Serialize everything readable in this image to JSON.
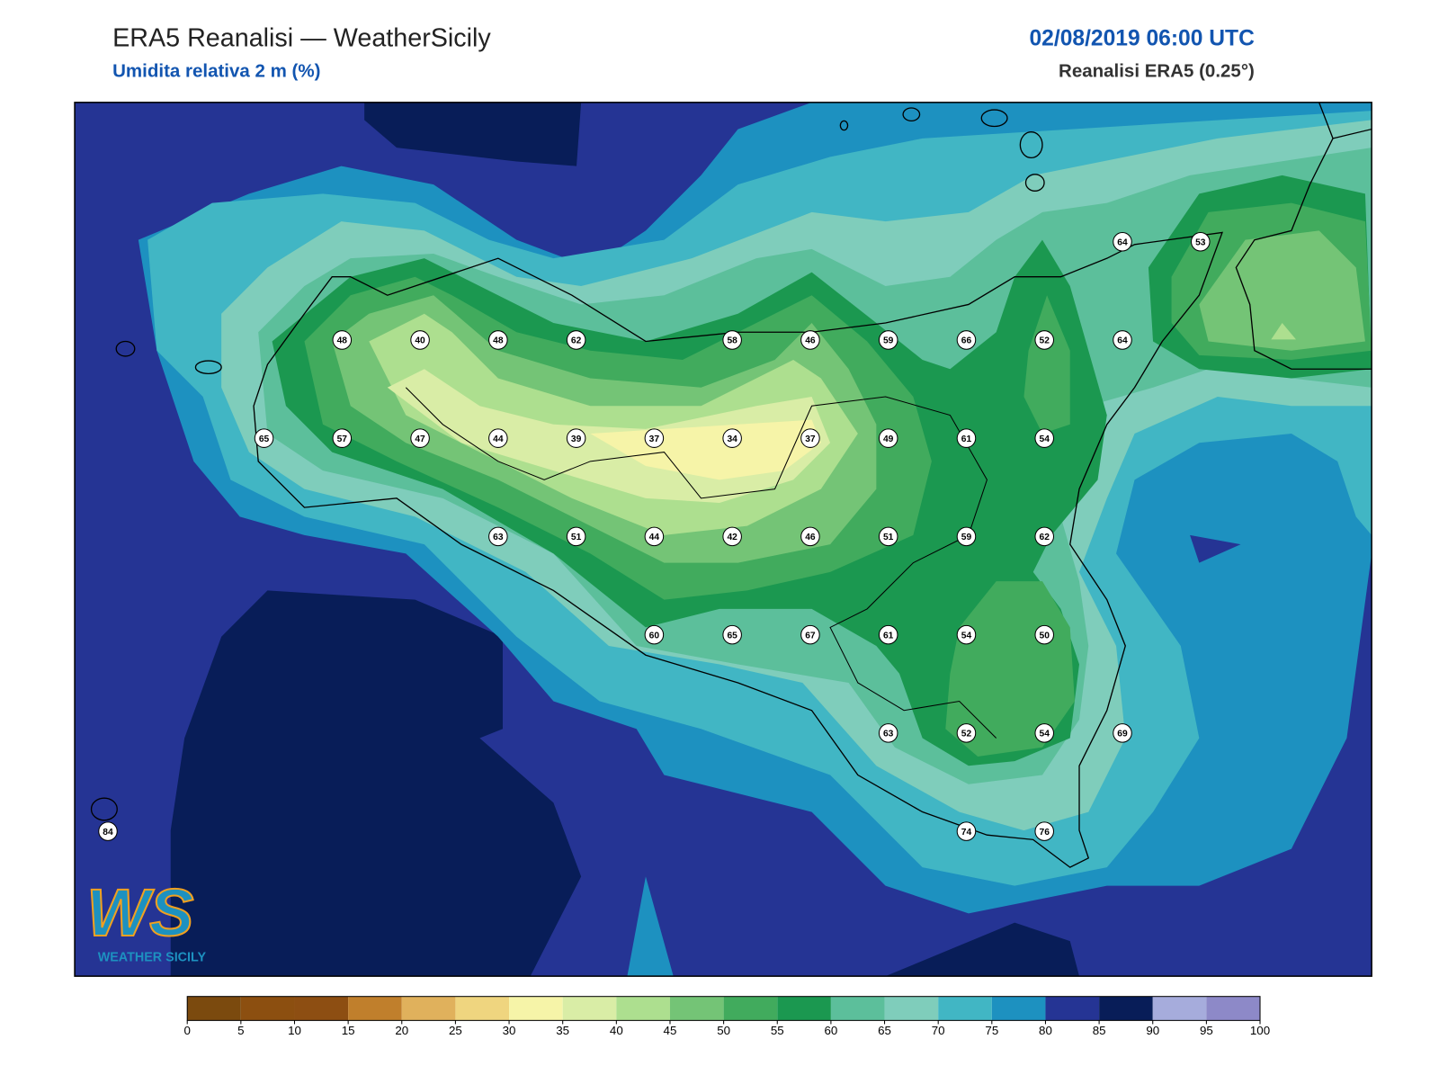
{
  "header": {
    "title": "ERA5 Reanalisi — WeatherSicily",
    "subtitle": "Umidita relativa 2 m (%)",
    "datetime": "02/08/2019 06:00 UTC",
    "source": "Reanalisi ERA5 (0.25°)"
  },
  "map": {
    "station_grid": [
      [
        null,
        null,
        null,
        null,
        null,
        null,
        null,
        null,
        null,
        null,
        null,
        null,
        null,
        64,
        53
      ],
      [
        null,
        null,
        null,
        48,
        40,
        48,
        62,
        null,
        58,
        46,
        59,
        66,
        52,
        64,
        null
      ],
      [
        null,
        null,
        65,
        57,
        47,
        44,
        39,
        37,
        34,
        37,
        49,
        61,
        54,
        null,
        null
      ],
      [
        null,
        null,
        null,
        null,
        null,
        63,
        51,
        44,
        42,
        46,
        51,
        59,
        62,
        null,
        null
      ],
      [
        null,
        null,
        null,
        null,
        null,
        null,
        null,
        60,
        65,
        67,
        61,
        54,
        50,
        null,
        null
      ],
      [
        null,
        null,
        null,
        null,
        null,
        null,
        null,
        null,
        null,
        null,
        63,
        52,
        54,
        69,
        null
      ],
      [
        84,
        null,
        null,
        null,
        null,
        null,
        null,
        null,
        null,
        null,
        null,
        74,
        76,
        null,
        null
      ]
    ]
  },
  "colorbar": {
    "ticks": [
      0,
      5,
      10,
      15,
      20,
      25,
      30,
      35,
      40,
      45,
      50,
      55,
      60,
      65,
      70,
      75,
      80,
      85,
      90,
      95,
      100
    ],
    "colors": [
      "#7b4a0e",
      "#8c4f10",
      "#8d4e12",
      "#c07f2c",
      "#e0b15c",
      "#efd57f",
      "#f6f4a8",
      "#d9eda6",
      "#addf8f",
      "#74c476",
      "#41ab5d",
      "#1b9850",
      "#5cbf9b",
      "#7fcdbb",
      "#41b6c4",
      "#1d91c0",
      "#253494",
      "#081d58",
      "#a6acdc",
      "#8d89c8"
    ]
  },
  "logo": {
    "mark": "WS",
    "text": "WEATHER SICILY"
  }
}
